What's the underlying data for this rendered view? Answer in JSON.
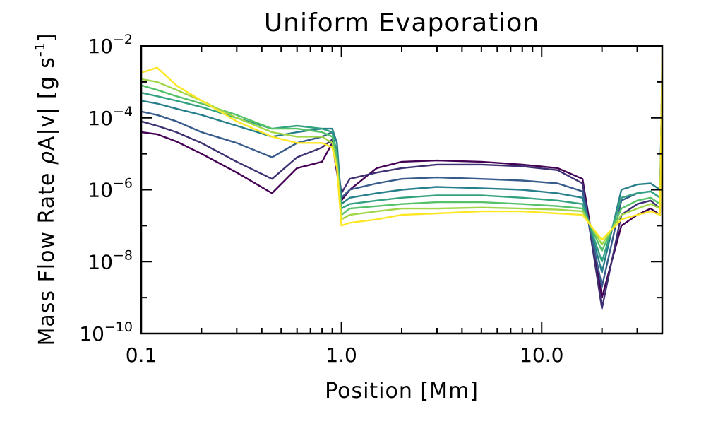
{
  "chart_data": {
    "type": "line",
    "title": "Uniform Evaporation",
    "xlabel": "Position [Mm]",
    "ylabel": "Mass Flow Rate ρA|v| [g s⁻¹]",
    "ylabel_parts": {
      "main": "Mass Flow Rate ",
      "rho": "ρ",
      "mid": "A|v| [g s",
      "exp": "-1",
      "end": "]"
    },
    "x_scale": "log",
    "y_scale": "log",
    "xlim": [
      0.1,
      40
    ],
    "ylim": [
      1e-10,
      0.01
    ],
    "x_ticks": [
      {
        "value": 0.1,
        "label": "0.1"
      },
      {
        "value": 1.0,
        "label": "1.0"
      },
      {
        "value": 10.0,
        "label": "10.0"
      }
    ],
    "y_ticks": [
      {
        "value": 1e-10,
        "base": "10",
        "exp": "−10"
      },
      {
        "value": 1e-08,
        "base": "10",
        "exp": "−8"
      },
      {
        "value": 1e-06,
        "base": "10",
        "exp": "−6"
      },
      {
        "value": 0.0001,
        "base": "10",
        "exp": "−4"
      },
      {
        "value": 0.01,
        "base": "10",
        "exp": "−2"
      }
    ],
    "grid": false,
    "legend": "none",
    "colormap": "viridis",
    "colormap_stops": [
      "#440154",
      "#3b528b",
      "#21918c",
      "#5ec962",
      "#fde725"
    ],
    "x": [
      0.1,
      0.12,
      0.15,
      0.2,
      0.3,
      0.45,
      0.6,
      0.8,
      0.9,
      0.95,
      1.0,
      1.1,
      1.5,
      2,
      3,
      5,
      8,
      12,
      16,
      20,
      25,
      30,
      35,
      39,
      40
    ],
    "series": [
      {
        "values": [
          4e-05,
          3.5e-05,
          2.2e-05,
          1e-05,
          3e-06,
          8e-07,
          4e-06,
          6e-06,
          2e-05,
          3e-06,
          5e-07,
          1e-06,
          4e-06,
          6e-06,
          6.5e-06,
          6e-06,
          5e-06,
          4e-06,
          2e-06,
          1e-09,
          1e-07,
          2e-07,
          3e-07,
          2e-07,
          0.004
        ]
      },
      {
        "values": [
          8e-05,
          6e-05,
          4e-05,
          2e-05,
          6e-06,
          2e-06,
          8e-06,
          1.5e-05,
          2.5e-05,
          6e-06,
          8e-07,
          2e-06,
          3e-06,
          4e-06,
          5e-06,
          5e-06,
          4.5e-06,
          3.5e-06,
          1.5e-06,
          5e-10,
          2e-07,
          4e-07,
          5e-07,
          3e-07,
          0.003
        ]
      },
      {
        "values": [
          0.00015,
          0.00012,
          8e-05,
          4e-05,
          2e-05,
          8e-06,
          2e-05,
          3e-05,
          4e-05,
          1e-05,
          6e-07,
          1e-06,
          1.5e-06,
          2e-06,
          2.2e-06,
          2e-06,
          1.8e-06,
          1.5e-06,
          9e-07,
          2e-09,
          5e-07,
          8e-07,
          9e-07,
          6e-07,
          0.002
        ]
      },
      {
        "values": [
          0.0003,
          0.00025,
          0.00018,
          0.00012,
          6e-05,
          3e-05,
          4e-05,
          5e-05,
          5e-05,
          2e-05,
          4e-07,
          6e-07,
          8e-07,
          1e-06,
          1.2e-06,
          1.1e-06,
          1e-06,
          8e-07,
          6e-07,
          5e-09,
          1e-06,
          1.4e-06,
          1.5e-06,
          1e-06,
          0.0015
        ]
      },
      {
        "values": [
          0.0005,
          0.0004,
          0.0003,
          0.0002,
          0.0001,
          5e-05,
          6e-05,
          5e-05,
          4e-05,
          1e-05,
          3e-07,
          4e-07,
          5e-07,
          6e-07,
          7e-07,
          7e-07,
          6e-07,
          5e-07,
          4e-07,
          1e-08,
          6e-07,
          8e-07,
          9e-07,
          6e-07,
          0.001
        ]
      },
      {
        "values": [
          0.0008,
          0.0006,
          0.0004,
          0.00025,
          0.00012,
          5e-05,
          5e-05,
          4e-05,
          3e-05,
          8e-06,
          2e-07,
          3e-07,
          3.5e-07,
          4e-07,
          4.5e-07,
          4.5e-07,
          4e-07,
          3.5e-07,
          3e-07,
          2e-08,
          3e-07,
          5e-07,
          6e-07,
          4e-07,
          0.001
        ]
      },
      {
        "values": [
          0.0012,
          0.001,
          0.0006,
          0.0003,
          0.0001,
          4e-05,
          3e-05,
          3e-05,
          2e-05,
          5e-06,
          1.5e-07,
          2e-07,
          2.5e-07,
          3e-07,
          3e-07,
          3.2e-07,
          3e-07,
          2.8e-07,
          2.5e-07,
          3e-08,
          2e-07,
          3e-07,
          4e-07,
          3e-07,
          0.002
        ]
      },
      {
        "values": [
          0.0018,
          0.0025,
          0.0008,
          0.0003,
          8e-05,
          3e-05,
          2e-05,
          2e-05,
          1.5e-05,
          4e-06,
          1e-07,
          1.2e-07,
          1.5e-07,
          2e-07,
          2.2e-07,
          2.5e-07,
          2.5e-07,
          2.2e-07,
          2e-07,
          4e-08,
          1.5e-07,
          2e-07,
          2.5e-07,
          2e-07,
          0.008
        ]
      }
    ]
  }
}
